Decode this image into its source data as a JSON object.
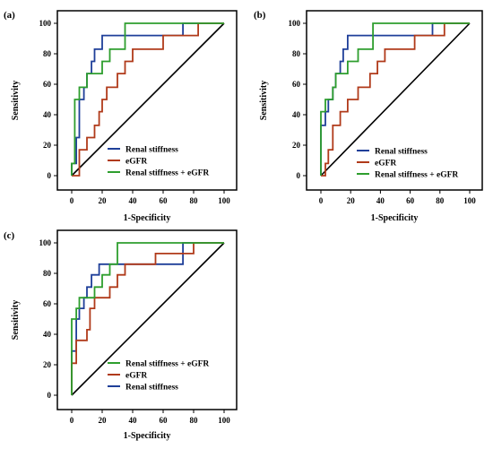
{
  "chart_data": [
    {
      "type": "line",
      "panel_label": "(a)",
      "xlabel": "1-Specificity",
      "ylabel": "Sensitivity",
      "xlim": [
        0,
        100
      ],
      "ylim": [
        0,
        100
      ],
      "xticks": [
        "0",
        "20",
        "40",
        "60",
        "80",
        "100"
      ],
      "yticks": [
        "0",
        "20",
        "40",
        "60",
        "80",
        "100"
      ],
      "legend_position": "bottom-right",
      "diagonal": true,
      "series": [
        {
          "name": "Renal stiffness",
          "color": "#1f3f99",
          "points": [
            [
              0,
              0
            ],
            [
              0,
              8
            ],
            [
              3,
              8
            ],
            [
              3,
              25
            ],
            [
              5,
              25
            ],
            [
              5,
              50
            ],
            [
              8,
              50
            ],
            [
              8,
              58
            ],
            [
              10,
              58
            ],
            [
              10,
              67
            ],
            [
              13,
              67
            ],
            [
              13,
              75
            ],
            [
              15,
              75
            ],
            [
              15,
              83
            ],
            [
              20,
              83
            ],
            [
              20,
              92
            ],
            [
              73,
              92
            ],
            [
              73,
              100
            ],
            [
              100,
              100
            ]
          ]
        },
        {
          "name": "eGFR",
          "color": "#b03a1a",
          "points": [
            [
              0,
              0
            ],
            [
              0,
              0
            ],
            [
              5,
              0
            ],
            [
              5,
              17
            ],
            [
              10,
              17
            ],
            [
              10,
              25
            ],
            [
              15,
              25
            ],
            [
              15,
              33
            ],
            [
              18,
              33
            ],
            [
              18,
              42
            ],
            [
              20,
              42
            ],
            [
              20,
              50
            ],
            [
              23,
              50
            ],
            [
              23,
              58
            ],
            [
              30,
              58
            ],
            [
              30,
              67
            ],
            [
              35,
              67
            ],
            [
              35,
              75
            ],
            [
              40,
              75
            ],
            [
              40,
              83
            ],
            [
              60,
              83
            ],
            [
              60,
              92
            ],
            [
              83,
              92
            ],
            [
              83,
              100
            ],
            [
              100,
              100
            ]
          ]
        },
        {
          "name": "Renal stiffness + eGFR",
          "color": "#2e9e2e",
          "points": [
            [
              0,
              0
            ],
            [
              0,
              8
            ],
            [
              2,
              8
            ],
            [
              2,
              50
            ],
            [
              5,
              50
            ],
            [
              5,
              58
            ],
            [
              10,
              58
            ],
            [
              10,
              67
            ],
            [
              20,
              67
            ],
            [
              20,
              75
            ],
            [
              25,
              75
            ],
            [
              25,
              83
            ],
            [
              35,
              83
            ],
            [
              35,
              100
            ],
            [
              100,
              100
            ]
          ]
        }
      ]
    },
    {
      "type": "line",
      "panel_label": "(b)",
      "xlabel": "1-Specificity",
      "ylabel": "Sensitivity",
      "xlim": [
        0,
        100
      ],
      "ylim": [
        0,
        100
      ],
      "xticks": [
        "0",
        "20",
        "40",
        "60",
        "80",
        "100"
      ],
      "yticks": [
        "0",
        "20",
        "40",
        "60",
        "80",
        "100"
      ],
      "legend_position": "bottom-right",
      "diagonal": true,
      "series": [
        {
          "name": "Renal stiffness",
          "color": "#1f3f99",
          "points": [
            [
              0,
              0
            ],
            [
              0,
              33
            ],
            [
              3,
              33
            ],
            [
              3,
              42
            ],
            [
              5,
              42
            ],
            [
              5,
              50
            ],
            [
              8,
              50
            ],
            [
              8,
              58
            ],
            [
              10,
              58
            ],
            [
              10,
              67
            ],
            [
              13,
              67
            ],
            [
              13,
              75
            ],
            [
              15,
              75
            ],
            [
              15,
              83
            ],
            [
              18,
              83
            ],
            [
              18,
              92
            ],
            [
              75,
              92
            ],
            [
              75,
              100
            ],
            [
              100,
              100
            ]
          ]
        },
        {
          "name": "eGFR",
          "color": "#b03a1a",
          "points": [
            [
              0,
              0
            ],
            [
              0,
              0
            ],
            [
              3,
              0
            ],
            [
              3,
              8
            ],
            [
              5,
              8
            ],
            [
              5,
              17
            ],
            [
              8,
              17
            ],
            [
              8,
              33
            ],
            [
              13,
              33
            ],
            [
              13,
              42
            ],
            [
              18,
              42
            ],
            [
              18,
              50
            ],
            [
              25,
              50
            ],
            [
              25,
              58
            ],
            [
              33,
              58
            ],
            [
              33,
              67
            ],
            [
              38,
              67
            ],
            [
              38,
              75
            ],
            [
              43,
              75
            ],
            [
              43,
              83
            ],
            [
              63,
              83
            ],
            [
              63,
              92
            ],
            [
              83,
              92
            ],
            [
              83,
              100
            ],
            [
              100,
              100
            ]
          ]
        },
        {
          "name": "Renal stiffness + eGFR",
          "color": "#2e9e2e",
          "points": [
            [
              0,
              0
            ],
            [
              0,
              42
            ],
            [
              3,
              42
            ],
            [
              3,
              50
            ],
            [
              8,
              50
            ],
            [
              8,
              58
            ],
            [
              10,
              58
            ],
            [
              10,
              67
            ],
            [
              18,
              67
            ],
            [
              18,
              75
            ],
            [
              25,
              75
            ],
            [
              25,
              83
            ],
            [
              35,
              83
            ],
            [
              35,
              100
            ],
            [
              100,
              100
            ]
          ]
        }
      ]
    },
    {
      "type": "line",
      "panel_label": "(c)",
      "xlabel": "1-Specificity",
      "ylabel": "Sensitivity",
      "xlim": [
        0,
        100
      ],
      "ylim": [
        0,
        100
      ],
      "xticks": [
        "0",
        "20",
        "40",
        "60",
        "80",
        "100"
      ],
      "yticks": [
        "0",
        "20",
        "40",
        "60",
        "80",
        "100"
      ],
      "legend_position": "bottom-right",
      "diagonal": true,
      "legend_order": [
        "Renal stiffness + eGFR",
        "eGFR",
        "Renal stiffness"
      ],
      "series": [
        {
          "name": "Renal stiffness",
          "color": "#1f3f99",
          "points": [
            [
              0,
              0
            ],
            [
              0,
              29
            ],
            [
              3,
              29
            ],
            [
              3,
              50
            ],
            [
              5,
              50
            ],
            [
              5,
              57
            ],
            [
              8,
              57
            ],
            [
              8,
              64
            ],
            [
              10,
              64
            ],
            [
              10,
              71
            ],
            [
              13,
              71
            ],
            [
              13,
              79
            ],
            [
              18,
              79
            ],
            [
              18,
              86
            ],
            [
              73,
              86
            ],
            [
              73,
              100
            ],
            [
              100,
              100
            ]
          ]
        },
        {
          "name": "eGFR",
          "color": "#b03a1a",
          "points": [
            [
              0,
              0
            ],
            [
              0,
              21
            ],
            [
              3,
              21
            ],
            [
              3,
              36
            ],
            [
              10,
              36
            ],
            [
              10,
              43
            ],
            [
              12,
              43
            ],
            [
              12,
              57
            ],
            [
              15,
              57
            ],
            [
              15,
              64
            ],
            [
              25,
              64
            ],
            [
              25,
              71
            ],
            [
              30,
              71
            ],
            [
              30,
              79
            ],
            [
              35,
              79
            ],
            [
              35,
              86
            ],
            [
              55,
              86
            ],
            [
              55,
              93
            ],
            [
              80,
              93
            ],
            [
              80,
              100
            ],
            [
              100,
              100
            ]
          ]
        },
        {
          "name": "Renal stiffness + eGFR",
          "color": "#2e9e2e",
          "points": [
            [
              0,
              0
            ],
            [
              0,
              50
            ],
            [
              3,
              50
            ],
            [
              3,
              57
            ],
            [
              5,
              57
            ],
            [
              5,
              64
            ],
            [
              15,
              64
            ],
            [
              15,
              71
            ],
            [
              20,
              71
            ],
            [
              20,
              79
            ],
            [
              25,
              79
            ],
            [
              25,
              86
            ],
            [
              30,
              86
            ],
            [
              30,
              100
            ],
            [
              100,
              100
            ]
          ]
        }
      ]
    }
  ]
}
